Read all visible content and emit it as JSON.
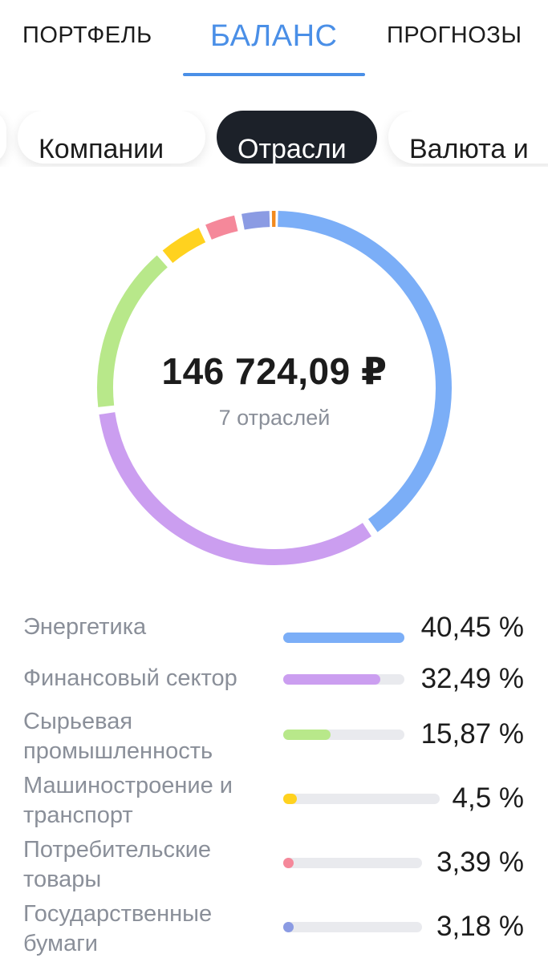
{
  "tabs": [
    {
      "label": "ПОРТФЕЛЬ",
      "active": false
    },
    {
      "label": "БАЛАНС",
      "active": true
    },
    {
      "label": "ПРОГНОЗЫ",
      "active": false
    }
  ],
  "chips": [
    {
      "label": "Компании",
      "active": false
    },
    {
      "label": "Отрасли",
      "active": true
    },
    {
      "label": "Валюта и",
      "active": false
    }
  ],
  "summary": {
    "total": "146 724,09 ₽",
    "subtitle": "7 отраслей"
  },
  "chart_data": {
    "type": "pie",
    "style": "donut",
    "total_label": "146 724,09 ₽",
    "count_label": "7 отраслей",
    "slices": [
      {
        "name": "Энергетика",
        "value": 40.45,
        "label": "40,45 %",
        "color": "#7baef7"
      },
      {
        "name": "Финансовый сектор",
        "value": 32.49,
        "label": "32,49 %",
        "color": "#cb9ef0"
      },
      {
        "name": "Сырьевая промышленность",
        "value": 15.87,
        "label": "15,87 %",
        "color": "#b8e88a"
      },
      {
        "name": "Машиностроение и транспорт",
        "value": 4.5,
        "label": "4,5 %",
        "color": "#ffd21f"
      },
      {
        "name": "Потребительские товары",
        "value": 3.39,
        "label": "3,39 %",
        "color": "#f5889a"
      },
      {
        "name": "Государственные бумаги",
        "value": 3.18,
        "label": "3,18 %",
        "color": "#8b9be3"
      },
      {
        "name": "",
        "value": 0.12,
        "label": "",
        "color": "#f28a1d"
      }
    ]
  }
}
